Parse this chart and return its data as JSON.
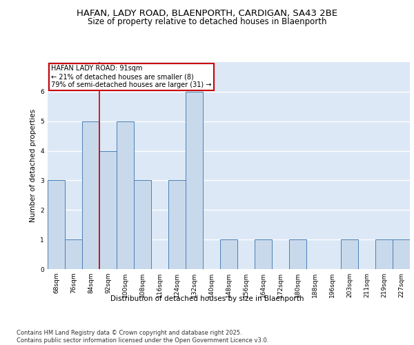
{
  "title1": "HAFAN, LADY ROAD, BLAENPORTH, CARDIGAN, SA43 2BE",
  "title2": "Size of property relative to detached houses in Blaenporth",
  "xlabel": "Distribution of detached houses by size in Blaenporth",
  "ylabel": "Number of detached properties",
  "categories": [
    "68sqm",
    "76sqm",
    "84sqm",
    "92sqm",
    "100sqm",
    "108sqm",
    "116sqm",
    "124sqm",
    "132sqm",
    "140sqm",
    "148sqm",
    "156sqm",
    "164sqm",
    "172sqm",
    "180sqm",
    "188sqm",
    "196sqm",
    "203sqm",
    "211sqm",
    "219sqm",
    "227sqm"
  ],
  "values": [
    3,
    1,
    5,
    4,
    5,
    3,
    0,
    3,
    6,
    0,
    1,
    0,
    1,
    0,
    1,
    0,
    0,
    1,
    0,
    1,
    1
  ],
  "bar_color": "#c9d9ec",
  "bar_edge_color": "#4a7fb5",
  "background_color": "#dce8f5",
  "grid_color": "#ffffff",
  "red_line_x": 2.5,
  "annotation_text": "HAFAN LADY ROAD: 91sqm\n← 21% of detached houses are smaller (8)\n79% of semi-detached houses are larger (31) →",
  "annotation_box_color": "#ffffff",
  "annotation_box_edge": "#cc0000",
  "ylim": [
    0,
    7
  ],
  "yticks": [
    0,
    1,
    2,
    3,
    4,
    5,
    6
  ],
  "footer": "Contains HM Land Registry data © Crown copyright and database right 2025.\nContains public sector information licensed under the Open Government Licence v3.0.",
  "title_fontsize": 9.5,
  "subtitle_fontsize": 8.5,
  "label_fontsize": 7.5,
  "tick_fontsize": 6.5,
  "footer_fontsize": 6.0
}
